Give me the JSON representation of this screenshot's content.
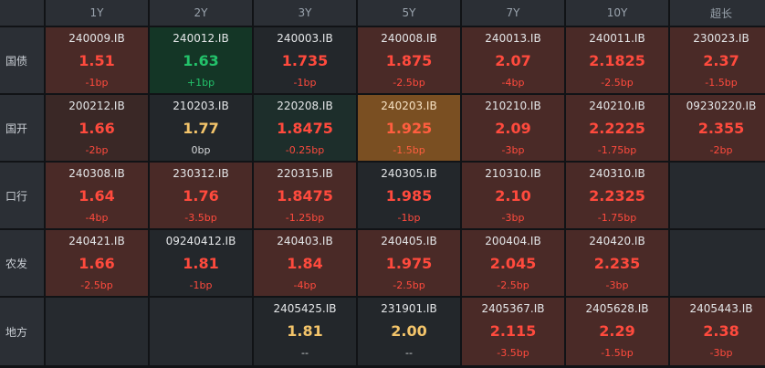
{
  "columns": [
    "1Y",
    "2Y",
    "3Y",
    "5Y",
    "7Y",
    "10Y",
    "超长"
  ],
  "rows": [
    {
      "label": "国债",
      "cells": [
        {
          "code": "240009.IB",
          "rate": "1.51",
          "chg": "-1bp",
          "tone": "up"
        },
        {
          "code": "240012.IB",
          "rate": "1.63",
          "chg": "+1bp",
          "tone": "down"
        },
        {
          "code": "240003.IB",
          "rate": "1.735",
          "chg": "-1bp",
          "tone": "neg"
        },
        {
          "code": "240008.IB",
          "rate": "1.875",
          "chg": "-2.5bp",
          "tone": "up"
        },
        {
          "code": "240013.IB",
          "rate": "2.07",
          "chg": "-4bp",
          "tone": "up"
        },
        {
          "code": "240011.IB",
          "rate": "2.1825",
          "chg": "-2.5bp",
          "tone": "up"
        },
        {
          "code": "230023.IB",
          "rate": "2.37",
          "chg": "-1.5bp",
          "tone": "up"
        }
      ]
    },
    {
      "label": "国开",
      "cells": [
        {
          "code": "200212.IB",
          "rate": "1.66",
          "chg": "-2bp",
          "tone": "up-light"
        },
        {
          "code": "210203.IB",
          "rate": "1.77",
          "chg": "0bp",
          "tone": "flat"
        },
        {
          "code": "220208.IB",
          "rate": "1.8475",
          "chg": "-0.25bp",
          "tone": "teal"
        },
        {
          "code": "240203.IB",
          "rate": "1.925",
          "chg": "-1.5bp",
          "tone": "highlight"
        },
        {
          "code": "210210.IB",
          "rate": "2.09",
          "chg": "-3bp",
          "tone": "up"
        },
        {
          "code": "240210.IB",
          "rate": "2.2225",
          "chg": "-1.75bp",
          "tone": "up"
        },
        {
          "code": "09230220.IB",
          "rate": "2.355",
          "chg": "-2bp",
          "tone": "up"
        }
      ]
    },
    {
      "label": "口行",
      "cells": [
        {
          "code": "240308.IB",
          "rate": "1.64",
          "chg": "-4bp",
          "tone": "up"
        },
        {
          "code": "230312.IB",
          "rate": "1.76",
          "chg": "-3.5bp",
          "tone": "up"
        },
        {
          "code": "220315.IB",
          "rate": "1.8475",
          "chg": "-1.25bp",
          "tone": "up"
        },
        {
          "code": "240305.IB",
          "rate": "1.985",
          "chg": "-1bp",
          "tone": "neg"
        },
        {
          "code": "210310.IB",
          "rate": "2.10",
          "chg": "-3bp",
          "tone": "up"
        },
        {
          "code": "240310.IB",
          "rate": "2.2325",
          "chg": "-1.75bp",
          "tone": "up"
        },
        null
      ]
    },
    {
      "label": "农发",
      "cells": [
        {
          "code": "240421.IB",
          "rate": "1.66",
          "chg": "-2.5bp",
          "tone": "up"
        },
        {
          "code": "09240412.IB",
          "rate": "1.81",
          "chg": "-1bp",
          "tone": "neg"
        },
        {
          "code": "240403.IB",
          "rate": "1.84",
          "chg": "-4bp",
          "tone": "up"
        },
        {
          "code": "240405.IB",
          "rate": "1.975",
          "chg": "-2.5bp",
          "tone": "up"
        },
        {
          "code": "200404.IB",
          "rate": "2.045",
          "chg": "-2.5bp",
          "tone": "up"
        },
        {
          "code": "240420.IB",
          "rate": "2.235",
          "chg": "-3bp",
          "tone": "up"
        },
        null
      ]
    },
    {
      "label": "地方",
      "cells": [
        null,
        null,
        {
          "code": "2405425.IB",
          "rate": "1.81",
          "chg": "--",
          "tone": "flat"
        },
        {
          "code": "231901.IB",
          "rate": "2.00",
          "chg": "--",
          "tone": "flat"
        },
        {
          "code": "2405367.IB",
          "rate": "2.115",
          "chg": "-3.5bp",
          "tone": "up"
        },
        {
          "code": "2405628.IB",
          "rate": "2.29",
          "chg": "-1.5bp",
          "tone": "up"
        },
        {
          "code": "2405443.IB",
          "rate": "2.38",
          "chg": "-3bp",
          "tone": "up"
        }
      ]
    }
  ]
}
